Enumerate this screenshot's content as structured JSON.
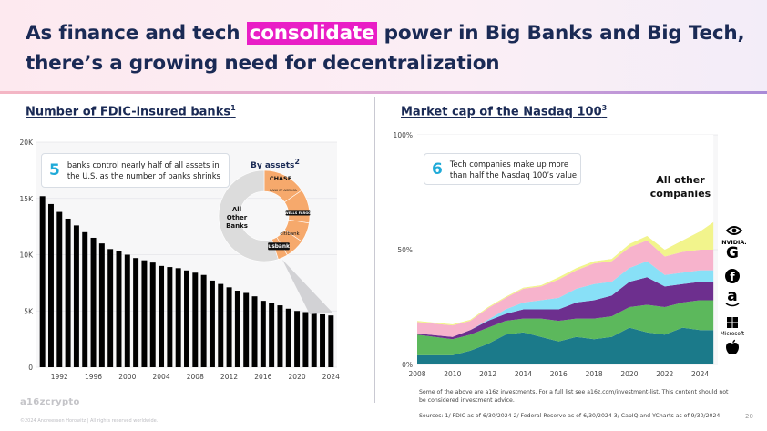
{
  "header": {
    "title_pre": "As finance and tech ",
    "title_highlight": "consolidate",
    "title_post": " power in Big Banks and Big Tech, there’s a growing need for decentralization"
  },
  "left": {
    "section_title": "Number of FDIC-insured banks",
    "section_sup": "1",
    "callout_number": "5",
    "callout_text": "banks control nearly half of all assets in the U.S. as the number of banks shrinks",
    "donut_title": "By assets",
    "donut_title_sup": "2",
    "donut_center_label": "All Other Banks",
    "donut_bank_logos": [
      "CHASE",
      "BANK OF AMERICA",
      "WELLS FARGO",
      "citibank",
      "usbank"
    ]
  },
  "right": {
    "section_title": "Market cap of the Nasdaq 100",
    "section_sup": "3",
    "callout_number": "6",
    "callout_text": "Tech companies make up more than half the Nasdaq 100’s value",
    "other_label": "All other companies",
    "company_icons": [
      {
        "name": "nvidia-icon",
        "label": "NVIDIA."
      },
      {
        "name": "google-icon",
        "label": "G"
      },
      {
        "name": "facebook-icon",
        "label": "f"
      },
      {
        "name": "amazon-icon",
        "label": "a"
      },
      {
        "name": "microsoft-icon",
        "label": "Microsoft"
      },
      {
        "name": "apple-icon",
        "label": ""
      }
    ]
  },
  "footer": {
    "brand": "a16zcrypto",
    "copyright": "©2024 Andreessen Horowitz  |  All rights reserved worldwide.",
    "disclaimer_pre": "Some of the above are a16z investments. For a full list see ",
    "disclaimer_link": "a16z.com/investment-list",
    "disclaimer_post": ". This content should not be considered investment advice.",
    "sources": "Sources: 1/ FDIC as of 6/30/2024 2/ Federal Reserve as of 6/30/2024 3/ CapIQ and YCharts as of 9/30/2024.",
    "page_number": "20"
  },
  "colors": {
    "bar": "#000000",
    "accent": "#1faad8",
    "highlight": "#e91ec6",
    "navy": "#1a2a55",
    "donut_main": "#f6a96c",
    "donut_other": "#dcdcdc"
  },
  "chart_data": [
    {
      "type": "bar",
      "title": "Number of FDIC-insured banks",
      "xlabel": "",
      "ylabel": "",
      "ylim": [
        0,
        20000
      ],
      "yticks": [
        0,
        5000,
        10000,
        15000,
        20000
      ],
      "ytick_labels": [
        "0",
        "5K",
        "10K",
        "15K",
        "20K"
      ],
      "xtick_labels": [
        "1992",
        "1996",
        "2000",
        "2004",
        "2008",
        "2012",
        "2016",
        "2020",
        "2024"
      ],
      "categories": [
        "1990",
        "1991",
        "1992",
        "1993",
        "1994",
        "1995",
        "1996",
        "1997",
        "1998",
        "1999",
        "2000",
        "2001",
        "2002",
        "2003",
        "2004",
        "2005",
        "2006",
        "2007",
        "2008",
        "2009",
        "2010",
        "2011",
        "2012",
        "2013",
        "2014",
        "2015",
        "2016",
        "2017",
        "2018",
        "2019",
        "2020",
        "2021",
        "2022",
        "2023",
        "2024"
      ],
      "values": [
        15200,
        14500,
        13800,
        13200,
        12600,
        12000,
        11500,
        11000,
        10500,
        10300,
        10000,
        9700,
        9500,
        9300,
        9000,
        8900,
        8800,
        8600,
        8400,
        8200,
        7700,
        7400,
        7100,
        6800,
        6600,
        6300,
        5900,
        5700,
        5500,
        5200,
        5000,
        4900,
        4800,
        4700,
        4600
      ]
    },
    {
      "type": "pie",
      "title": "By assets",
      "categories": [
        "JPMorgan Chase",
        "Bank of America",
        "Wells Fargo",
        "Citibank",
        "U.S. Bank",
        "All Other Banks"
      ],
      "values": [
        0.155,
        0.12,
        0.07,
        0.07,
        0.035,
        0.55
      ]
    },
    {
      "type": "area",
      "title": "Market cap of the Nasdaq 100",
      "ylim": [
        0,
        100
      ],
      "ytick_labels": [
        "0%",
        "50%",
        "100%"
      ],
      "xtick_labels": [
        "2008",
        "2010",
        "2012",
        "2014",
        "2016",
        "2018",
        "2020",
        "2022",
        "2024"
      ],
      "x": [
        2008,
        2010,
        2011,
        2012,
        2013,
        2014,
        2015,
        2016,
        2017,
        2018,
        2019,
        2020,
        2021,
        2022,
        2023,
        2024,
        2024.75
      ],
      "series": [
        {
          "name": "Apple",
          "color": "#1b7a8a",
          "values": [
            4,
            4,
            6,
            9,
            13,
            14,
            12,
            10,
            12,
            11,
            12,
            16,
            14,
            13,
            16,
            15,
            15
          ]
        },
        {
          "name": "Microsoft",
          "color": "#5cb85c",
          "values": [
            9,
            7,
            7,
            7,
            6,
            6,
            8,
            9,
            8,
            9,
            9,
            9,
            12,
            12,
            11,
            13,
            13
          ]
        },
        {
          "name": "Amazon",
          "color": "#6d2f8e",
          "values": [
            0.5,
            1,
            2,
            3,
            3,
            4,
            4,
            5,
            7,
            8,
            9,
            11,
            12,
            9,
            8,
            8,
            8
          ]
        },
        {
          "name": "Facebook",
          "color": "#88e0f7",
          "values": [
            0,
            0,
            0,
            0.5,
            2,
            3,
            4,
            5,
            6,
            7,
            6,
            6,
            7,
            5,
            5,
            5,
            5
          ]
        },
        {
          "name": "Google",
          "color": "#f7b3cc",
          "values": [
            5,
            5,
            4,
            5,
            5,
            6,
            6,
            8,
            8,
            9,
            9,
            9,
            9,
            8,
            9,
            9,
            9
          ]
        },
        {
          "name": "Nvidia",
          "color": "#f2f48c",
          "values": [
            0.5,
            0.5,
            0.5,
            0.5,
            0.5,
            0.5,
            0.5,
            1,
            1,
            1,
            1,
            1.5,
            2,
            3,
            5,
            8,
            12
          ]
        },
        {
          "name": "All other companies",
          "color": "#ffffff",
          "values": [
            81,
            82.5,
            80.5,
            75,
            70.5,
            66.5,
            65.5,
            62,
            58,
            55,
            54,
            47.5,
            44,
            50,
            46,
            42,
            38
          ]
        }
      ]
    }
  ]
}
